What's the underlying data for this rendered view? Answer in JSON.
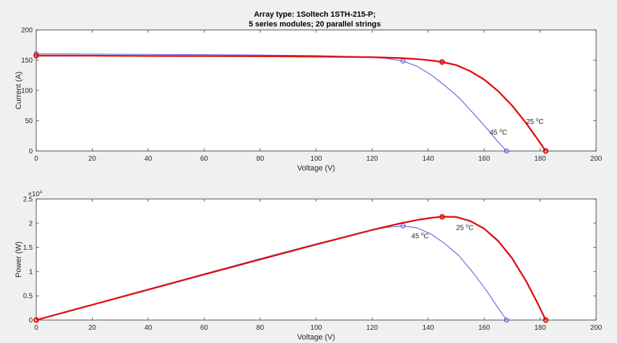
{
  "figure": {
    "title_line1": "Array type: 1Soltech 1STH-215-P;",
    "title_line2": "5 series modules; 20 parallel strings"
  },
  "colors": {
    "hot": "#3c3cd2",
    "cold": "#e01010",
    "axis": "#262626",
    "background": "#f0f0f0",
    "plot_bg": "#ffffff"
  },
  "chart_data": [
    {
      "type": "line",
      "xlabel": "Voltage (V)",
      "ylabel": "Current (A)",
      "xlim": [
        0,
        200
      ],
      "ylim": [
        0,
        200
      ],
      "xticks": [
        0,
        20,
        40,
        60,
        80,
        100,
        120,
        140,
        160,
        180,
        200
      ],
      "yticks": [
        0,
        50,
        100,
        150,
        200
      ],
      "grid": false,
      "series": [
        {
          "name": "45 °C",
          "x": [
            0,
            20,
            40,
            60,
            80,
            100,
            115,
            125,
            131,
            136,
            141,
            146,
            151,
            156,
            161,
            165,
            168
          ],
          "y": [
            160.5,
            160,
            159.5,
            159,
            158.5,
            157.5,
            156,
            153,
            148.5,
            140,
            126,
            108,
            88,
            63,
            37,
            15,
            0
          ],
          "mpp": [
            131,
            148.5
          ],
          "voc": [
            168,
            0
          ],
          "isc": [
            0,
            160.5
          ]
        },
        {
          "name": "25 °C",
          "x": [
            0,
            20,
            40,
            60,
            80,
            100,
            120,
            130,
            137,
            142,
            145,
            150,
            155,
            160,
            165,
            170,
            175,
            179,
            182
          ],
          "y": [
            157.5,
            157.3,
            157,
            156.8,
            156.5,
            156,
            155,
            153.5,
            151.5,
            149,
            147,
            142,
            132,
            118,
            99,
            75,
            46,
            20,
            0
          ],
          "mpp": [
            145,
            147
          ],
          "voc": [
            182,
            0
          ],
          "isc": [
            0,
            157.5
          ]
        }
      ],
      "annotations": [
        {
          "text": "45 °C",
          "x": 162,
          "y": 27,
          "series": "45 °C"
        },
        {
          "text": "25 °C",
          "x": 175,
          "y": 45,
          "series": "25 °C"
        }
      ]
    },
    {
      "type": "line",
      "xlabel": "Voltage (V)",
      "ylabel": "Power (W)",
      "y_exponent_label": "×10",
      "y_exponent": "4",
      "xlim": [
        0,
        200
      ],
      "ylim": [
        0,
        25000
      ],
      "xticks": [
        0,
        20,
        40,
        60,
        80,
        100,
        120,
        140,
        160,
        180,
        200
      ],
      "yticks": [
        0,
        5000,
        10000,
        15000,
        20000,
        25000
      ],
      "ytick_labels": [
        "0",
        "0.5",
        "1",
        "1.5",
        "2",
        "2.5"
      ],
      "grid": false,
      "series": [
        {
          "name": "45 °C",
          "x": [
            0,
            20,
            40,
            60,
            80,
            100,
            115,
            125,
            131,
            136,
            141,
            146,
            151,
            156,
            161,
            165,
            168
          ],
          "y": [
            0,
            3200,
            6380,
            9540,
            12680,
            15750,
            17940,
            19130,
            19450,
            19040,
            17770,
            15770,
            13290,
            9830,
            5960,
            2480,
            0
          ],
          "mpp": [
            131,
            19450
          ],
          "voc": [
            168,
            0
          ]
        },
        {
          "name": "25 °C",
          "x": [
            0,
            20,
            40,
            60,
            80,
            100,
            120,
            130,
            137,
            142,
            145,
            150,
            155,
            160,
            165,
            170,
            175,
            179,
            182
          ],
          "y": [
            0,
            3150,
            6280,
            9410,
            12520,
            15600,
            18600,
            19960,
            20760,
            21160,
            21315,
            21300,
            20460,
            18880,
            16340,
            12750,
            8050,
            3580,
            0
          ],
          "mpp": [
            145,
            21315
          ],
          "voc": [
            182,
            0
          ]
        }
      ],
      "annotations": [
        {
          "text": "25 °C",
          "x": 150,
          "y": 18600,
          "series": "25 °C"
        },
        {
          "text": "45 °C",
          "x": 134,
          "y": 16900,
          "series": "45 °C"
        }
      ]
    }
  ]
}
